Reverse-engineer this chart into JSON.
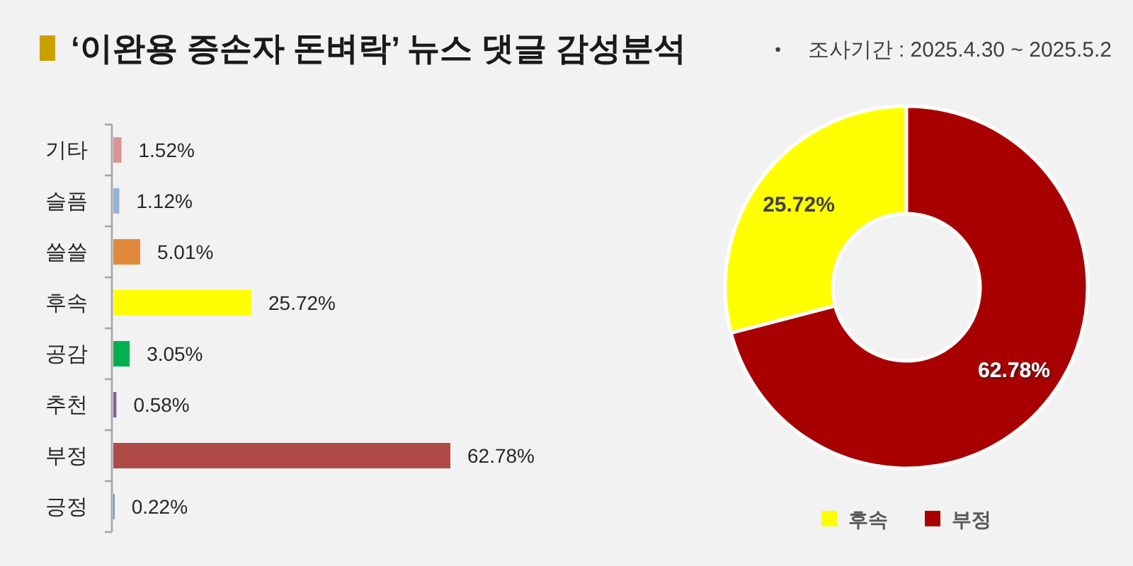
{
  "chart_data": [
    {
      "type": "bar",
      "title": "‘이완용 증손자 돈벼락’ 뉴스 댓글 감성분석",
      "orientation": "horizontal",
      "categories": [
        "기타",
        "슬픔",
        "쓸쓸",
        "후속",
        "공감",
        "추천",
        "부정",
        "긍정"
      ],
      "values": [
        1.52,
        1.12,
        5.01,
        25.72,
        3.05,
        0.58,
        62.78,
        0.22
      ],
      "colors": [
        "#d99594",
        "#95b3d7",
        "#e0883c",
        "#ffff00",
        "#00b050",
        "#8064a2",
        "#b04a48",
        "#4f81bd"
      ],
      "value_labels": [
        "1.52%",
        "1.12%",
        "5.01%",
        "25.72%",
        "3.05%",
        "0.58%",
        "62.78%",
        "0.22%"
      ]
    },
    {
      "type": "donut",
      "subtitle": "조사기간 : 2025.4.30 ~ 2025.5.2",
      "categories": [
        "후속",
        "부정"
      ],
      "values": [
        25.72,
        62.78
      ],
      "colors": [
        "#ffff00",
        "#a80000"
      ],
      "value_labels": [
        "25.72%",
        "62.78%"
      ],
      "legend": "bottom"
    }
  ]
}
